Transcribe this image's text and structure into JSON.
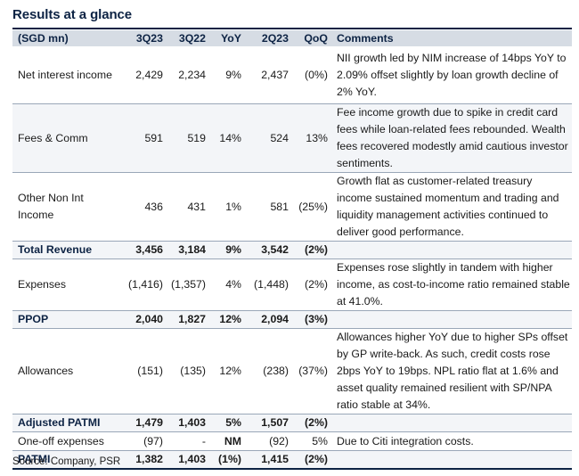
{
  "title": "Results at a glance",
  "headers": [
    "(SGD mn)",
    "3Q23",
    "3Q22",
    "YoY",
    "2Q23",
    "QoQ",
    "Comments"
  ],
  "rows": [
    {
      "label": "Net interest income",
      "v1": "2,429",
      "v2": "2,234",
      "yoy": "9%",
      "v4": "2,437",
      "qoq": "(0%)",
      "comment": "NII growth led by NIM increase of 14bps YoY to 2.09% offset slightly by loan growth decline of 2% YoY."
    },
    {
      "label": "Fees & Comm",
      "v1": "591",
      "v2": "519",
      "yoy": "14%",
      "v4": "524",
      "qoq": "13%",
      "comment": "Fee income growth due to spike in credit card fees  while loan-related fees rebounded. Wealth fees recovered modestly amid cautious investor sentiments."
    },
    {
      "label": "Other Non Int Income",
      "v1": "436",
      "v2": "431",
      "yoy": "1%",
      "v4": "581",
      "qoq": "(25%)",
      "comment": "Growth flat as customer-related treasury income sustained momentum and trading and liquidity management activities continued to deliver good performance."
    },
    {
      "label": "Total Revenue",
      "v1": "3,456",
      "v2": "3,184",
      "yoy": "9%",
      "v4": "3,542",
      "qoq": "(2%)",
      "comment": ""
    },
    {
      "label": "Expenses",
      "v1": "(1,416)",
      "v2": "(1,357)",
      "yoy": "4%",
      "v4": "(1,448)",
      "qoq": "(2%)",
      "comment": "Expenses rose  slightly in tandem with higher income, as cost-to-income ratio remained stable at 41.0%."
    },
    {
      "label": "PPOP",
      "v1": "2,040",
      "v2": "1,827",
      "yoy": "12%",
      "v4": "2,094",
      "qoq": "(3%)",
      "comment": ""
    },
    {
      "label": "Allowances",
      "v1": "(151)",
      "v2": "(135)",
      "yoy": "12%",
      "v4": "(238)",
      "qoq": "(37%)",
      "comment": "Allowances higher YoY due to higher SPs offset by GP write-back. As such, credit costs rose 2bps YoY to 19bps. NPL ratio flat at 1.6% and asset quality remained resilient with SP/NPA ratio stable at 34%."
    },
    {
      "label": "Adjusted PATMI",
      "v1": "1,479",
      "v2": "1,403",
      "yoy": "5%",
      "v4": "1,507",
      "qoq": "(2%)",
      "comment": ""
    },
    {
      "label": "One-off expenses",
      "v1": "(97)",
      "v2": "-",
      "yoy": "NM",
      "v4": "(92)",
      "qoq": "5%",
      "comment": "Due to Citi integration costs."
    },
    {
      "label": "PATMI",
      "v1": "1,382",
      "v2": "1,403",
      "yoy": "(1%)",
      "v4": "1,415",
      "qoq": "(2%)",
      "comment": ""
    }
  ],
  "source": "Source: Company, PSR"
}
